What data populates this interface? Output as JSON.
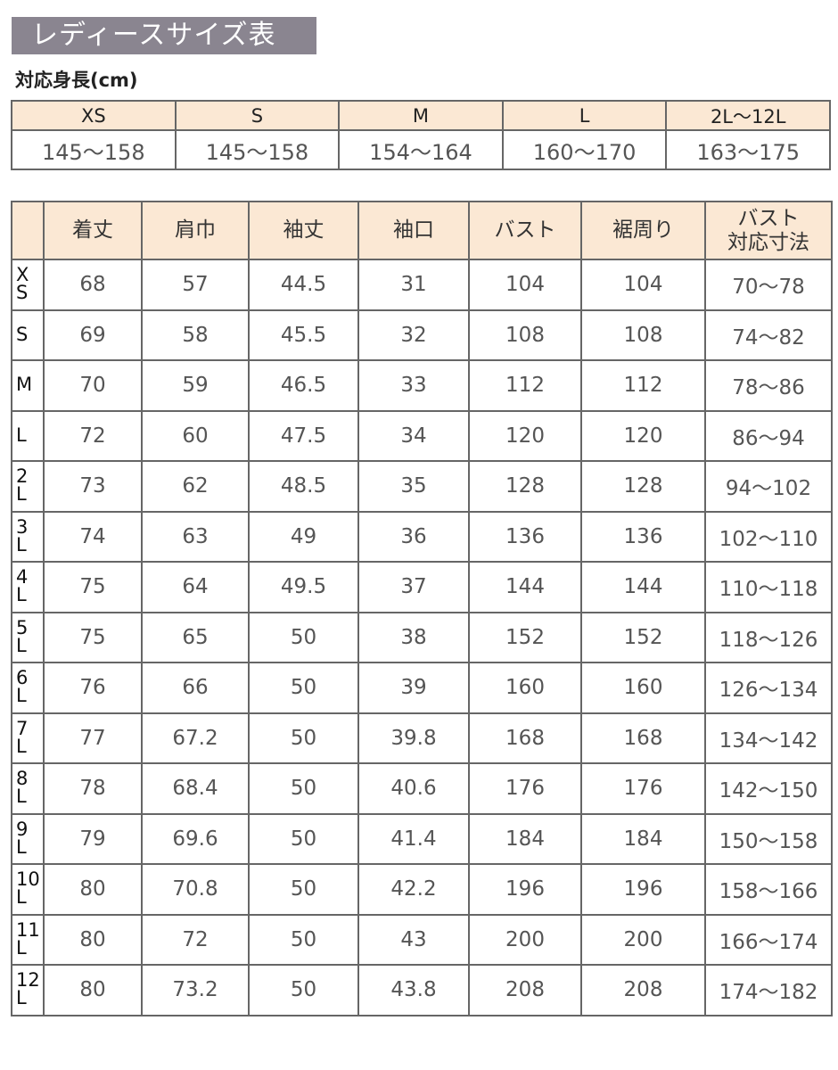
{
  "title": "レディースサイズ表",
  "height_label": "対応身長(cm)",
  "height_table": {
    "sizes": [
      "XS",
      "S",
      "M",
      "L",
      "2L〜12L"
    ],
    "ranges": [
      "145〜158",
      "145〜158",
      "154〜164",
      "160〜170",
      "163〜175"
    ]
  },
  "size_table": {
    "headers": [
      "",
      "着丈",
      "肩巾",
      "袖丈",
      "袖口",
      "バスト",
      "裾周り",
      "バスト\n対応寸法"
    ],
    "rows": [
      [
        "XS",
        "68",
        "57",
        "44.5",
        "31",
        "104",
        "104",
        "70〜78"
      ],
      [
        "S",
        "69",
        "58",
        "45.5",
        "32",
        "108",
        "108",
        "74〜82"
      ],
      [
        "M",
        "70",
        "59",
        "46.5",
        "33",
        "112",
        "112",
        "78〜86"
      ],
      [
        "L",
        "72",
        "60",
        "47.5",
        "34",
        "120",
        "120",
        "86〜94"
      ],
      [
        "2L",
        "73",
        "62",
        "48.5",
        "35",
        "128",
        "128",
        "94〜102"
      ],
      [
        "3L",
        "74",
        "63",
        "49",
        "36",
        "136",
        "136",
        "102〜110"
      ],
      [
        "4L",
        "75",
        "64",
        "49.5",
        "37",
        "144",
        "144",
        "110〜118"
      ],
      [
        "5L",
        "75",
        "65",
        "50",
        "38",
        "152",
        "152",
        "118〜126"
      ],
      [
        "6L",
        "76",
        "66",
        "50",
        "39",
        "160",
        "160",
        "126〜134"
      ],
      [
        "7L",
        "77",
        "67.2",
        "50",
        "39.8",
        "168",
        "168",
        "134〜142"
      ],
      [
        "8L",
        "78",
        "68.4",
        "50",
        "40.6",
        "176",
        "176",
        "142〜150"
      ],
      [
        "9L",
        "79",
        "69.6",
        "50",
        "41.4",
        "184",
        "184",
        "150〜158"
      ],
      [
        "10L",
        "80",
        "70.8",
        "50",
        "42.2",
        "196",
        "196",
        "158〜166"
      ],
      [
        "11L",
        "80",
        "72",
        "50",
        "43",
        "200",
        "200",
        "166〜174"
      ],
      [
        "12L",
        "80",
        "73.2",
        "50",
        "43.8",
        "208",
        "208",
        "174〜182"
      ]
    ]
  },
  "colors": {
    "title_bg": "#8a8590",
    "header_bg": "#fbe8d4",
    "border": "#666666"
  }
}
